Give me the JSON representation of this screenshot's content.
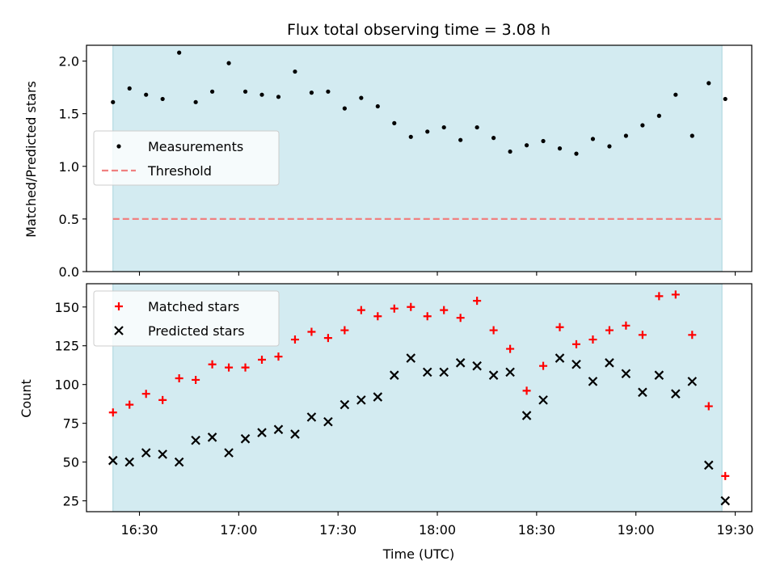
{
  "chart_data": {
    "title": "Flux total observing time = 3.08 h",
    "xlabel": "Time (UTC)",
    "x_tick_labels": [
      "16:30",
      "17:00",
      "17:30",
      "18:00",
      "18:30",
      "19:00",
      "19:30"
    ],
    "x_ticks": [
      "16:30",
      "17:00",
      "17:30",
      "18:00",
      "18:30",
      "19:00",
      "19:30"
    ],
    "xlim": [
      "16:14",
      "19:35"
    ],
    "observing_window": [
      "16:22",
      "19:26"
    ],
    "shade_color": "#d3ebf1",
    "panels": [
      {
        "name": "ratio",
        "type": "scatter",
        "ylabel": "Matched/Predicted stars",
        "ylim": [
          0,
          2.15
        ],
        "y_ticks": [
          0.0,
          0.5,
          1.0,
          1.5,
          2.0
        ],
        "y_tick_labels": [
          "0.0",
          "0.5",
          "1.0",
          "1.5",
          "2.0"
        ],
        "legend": {
          "position": "center-left",
          "entries": [
            "Measurements",
            "Threshold"
          ]
        },
        "series": [
          {
            "name": "Measurements",
            "marker": "dot",
            "color": "#000000",
            "x": [
              "16:22",
              "16:27",
              "16:32",
              "16:37",
              "16:42",
              "16:47",
              "16:52",
              "16:57",
              "17:02",
              "17:07",
              "17:12",
              "17:17",
              "17:22",
              "17:27",
              "17:32",
              "17:37",
              "17:42",
              "17:47",
              "17:52",
              "17:57",
              "18:02",
              "18:07",
              "18:12",
              "18:17",
              "18:22",
              "18:27",
              "18:32",
              "18:37",
              "18:42",
              "18:47",
              "18:52",
              "18:57",
              "19:02",
              "19:07",
              "19:12",
              "19:17",
              "19:22",
              "19:27"
            ],
            "y": [
              1.61,
              1.74,
              1.68,
              1.64,
              2.08,
              1.61,
              1.71,
              1.98,
              1.71,
              1.68,
              1.66,
              1.9,
              1.7,
              1.71,
              1.55,
              1.65,
              1.57,
              1.41,
              1.28,
              1.33,
              1.37,
              1.25,
              1.37,
              1.27,
              1.14,
              1.2,
              1.24,
              1.17,
              1.12,
              1.26,
              1.19,
              1.29,
              1.39,
              1.48,
              1.68,
              1.29,
              1.79,
              1.64
            ]
          },
          {
            "name": "Threshold",
            "style": "dashed",
            "color": "#f08080",
            "x": [
              "16:22",
              "19:26"
            ],
            "y": [
              0.5,
              0.5
            ]
          }
        ]
      },
      {
        "name": "counts",
        "type": "scatter",
        "ylabel": "Count",
        "ylim": [
          18,
          165
        ],
        "y_ticks": [
          25,
          50,
          75,
          100,
          125,
          150
        ],
        "y_tick_labels": [
          "25",
          "50",
          "75",
          "100",
          "125",
          "150"
        ],
        "legend": {
          "position": "top-left",
          "entries": [
            "Matched stars",
            "Predicted stars"
          ]
        },
        "series": [
          {
            "name": "Matched stars",
            "marker": "plus",
            "color": "#ff0000",
            "x": [
              "16:22",
              "16:27",
              "16:32",
              "16:37",
              "16:42",
              "16:47",
              "16:52",
              "16:57",
              "17:02",
              "17:07",
              "17:12",
              "17:17",
              "17:22",
              "17:27",
              "17:32",
              "17:37",
              "17:42",
              "17:47",
              "17:52",
              "17:57",
              "18:02",
              "18:07",
              "18:12",
              "18:17",
              "18:22",
              "18:27",
              "18:32",
              "18:37",
              "18:42",
              "18:47",
              "18:52",
              "18:57",
              "19:02",
              "19:07",
              "19:12",
              "19:17",
              "19:22",
              "19:27"
            ],
            "y": [
              82,
              87,
              94,
              90,
              104,
              103,
              113,
              111,
              111,
              116,
              118,
              129,
              134,
              130,
              135,
              148,
              144,
              149,
              150,
              144,
              148,
              143,
              154,
              135,
              123,
              96,
              112,
              137,
              126,
              129,
              135,
              138,
              132,
              157,
              158,
              132,
              86,
              41
            ]
          },
          {
            "name": "Predicted stars",
            "marker": "x",
            "color": "#000000",
            "x": [
              "16:22",
              "16:27",
              "16:32",
              "16:37",
              "16:42",
              "16:47",
              "16:52",
              "16:57",
              "17:02",
              "17:07",
              "17:12",
              "17:17",
              "17:22",
              "17:27",
              "17:32",
              "17:37",
              "17:42",
              "17:47",
              "17:52",
              "17:57",
              "18:02",
              "18:07",
              "18:12",
              "18:17",
              "18:22",
              "18:27",
              "18:32",
              "18:37",
              "18:42",
              "18:47",
              "18:52",
              "18:57",
              "19:02",
              "19:07",
              "19:12",
              "19:17",
              "19:22",
              "19:27"
            ],
            "y": [
              51,
              50,
              56,
              55,
              50,
              64,
              66,
              56,
              65,
              69,
              71,
              68,
              79,
              76,
              87,
              90,
              92,
              106,
              117,
              108,
              108,
              114,
              112,
              106,
              108,
              80,
              90,
              117,
              113,
              102,
              114,
              107,
              95,
              106,
              94,
              102,
              48,
              25
            ]
          }
        ]
      }
    ]
  }
}
